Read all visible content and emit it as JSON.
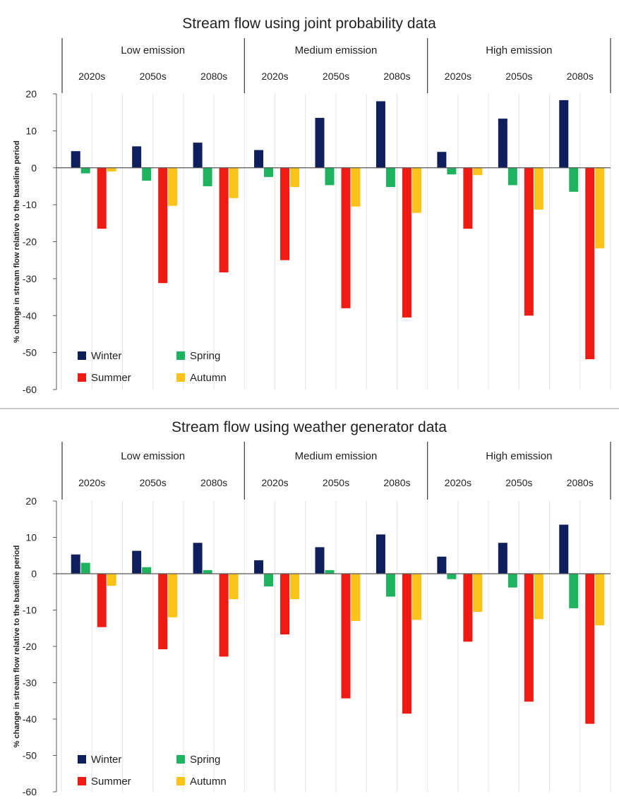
{
  "chart_data": [
    {
      "type": "bar",
      "title": "Stream flow using joint probability data",
      "ylabel": "% change in stream flow relative to the baseline period",
      "xlabel": "",
      "ylim": [
        -60,
        20
      ],
      "yticks": [
        20,
        10,
        0,
        -10,
        -20,
        -30,
        -40,
        -50,
        -60
      ],
      "grid": "vertical",
      "legend": "bottom-left",
      "groups": [
        "Low emission",
        "Medium emission",
        "High emission"
      ],
      "categories": [
        "2020s",
        "2050s",
        "2080s",
        "2020s",
        "2050s",
        "2080s",
        "2020s",
        "2050s",
        "2080s"
      ],
      "series": [
        {
          "name": "Winter",
          "color": "#0f1f5c",
          "values": [
            4.5,
            5.8,
            6.8,
            4.8,
            13.5,
            18,
            4.3,
            13.3,
            18.3
          ]
        },
        {
          "name": "Spring",
          "color": "#1fb360",
          "values": [
            -1.5,
            -3.5,
            -5,
            -2.5,
            -4.7,
            -5.2,
            -1.8,
            -4.7,
            -6.5
          ]
        },
        {
          "name": "Summer",
          "color": "#ee1b12",
          "values": [
            -16.5,
            -31.2,
            -28.3,
            -25,
            -38,
            -40.5,
            -16.5,
            -40,
            -51.8
          ]
        },
        {
          "name": "Autumn",
          "color": "#fbc31a",
          "values": [
            -1,
            -10.3,
            -8.2,
            -5.2,
            -10.5,
            -12.2,
            -2,
            -11.3,
            -21.8
          ]
        }
      ]
    },
    {
      "type": "bar",
      "title": "Stream flow using weather generator data",
      "ylabel": "% change in stream flow relative to the baseline period",
      "xlabel": "",
      "ylim": [
        -60,
        20
      ],
      "yticks": [
        20,
        10,
        0,
        -10,
        -20,
        -30,
        -40,
        -50,
        -60
      ],
      "grid": "vertical",
      "legend": "bottom-left",
      "groups": [
        "Low emission",
        "Medium emission",
        "High emission"
      ],
      "categories": [
        "2020s",
        "2050s",
        "2080s",
        "2020s",
        "2050s",
        "2080s",
        "2020s",
        "2050s",
        "2080s"
      ],
      "series": [
        {
          "name": "Winter",
          "color": "#0f1f5c",
          "values": [
            5.3,
            6.3,
            8.5,
            3.7,
            7.3,
            10.8,
            4.7,
            8.5,
            13.5
          ]
        },
        {
          "name": "Spring",
          "color": "#1fb360",
          "values": [
            3,
            1.8,
            1,
            -3.5,
            1,
            -6.3,
            -1.5,
            -3.8,
            -9.5
          ]
        },
        {
          "name": "Summer",
          "color": "#ee1b12",
          "values": [
            -14.7,
            -20.8,
            -22.8,
            -16.7,
            -34.3,
            -38.5,
            -18.7,
            -35.2,
            -41.3
          ]
        },
        {
          "name": "Autumn",
          "color": "#fbc31a",
          "values": [
            -3.3,
            -12,
            -7,
            -7,
            -13,
            -12.7,
            -10.5,
            -12.5,
            -14.2
          ]
        }
      ]
    }
  ]
}
